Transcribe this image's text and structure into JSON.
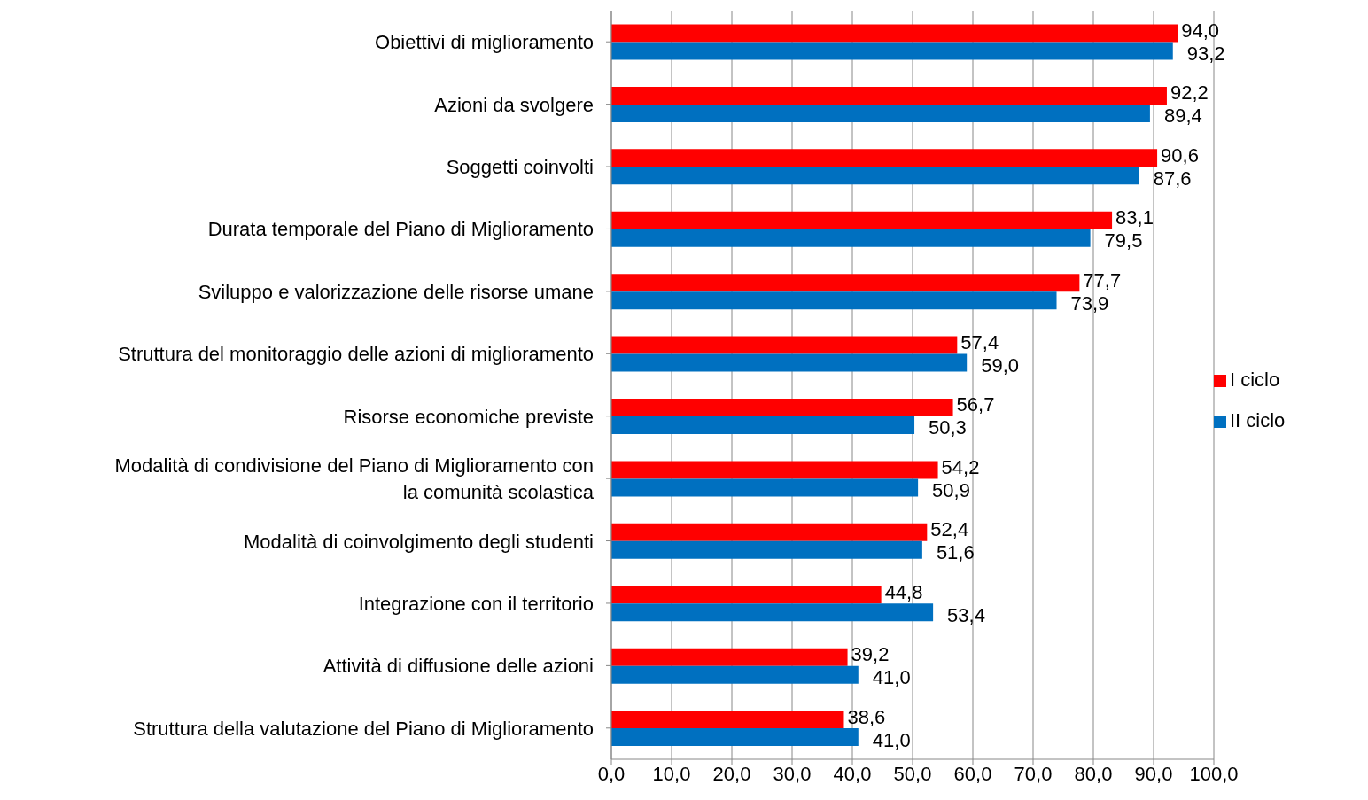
{
  "chart_data": {
    "type": "bar",
    "orientation": "horizontal",
    "categories": [
      "Obiettivi di miglioramento",
      "Azioni da svolgere",
      "Soggetti coinvolti",
      "Durata temporale del Piano di Miglioramento",
      "Sviluppo e valorizzazione delle risorse umane",
      "Struttura del monitoraggio delle azioni di miglioramento",
      "Risorse economiche previste",
      "Modalità di condivisione del Piano di Miglioramento con la comunità scolastica",
      "Modalità di coinvolgimento degli studenti",
      "Integrazione con il territorio",
      "Attività di diffusione delle azioni",
      "Struttura della valutazione del Piano di Miglioramento"
    ],
    "series": [
      {
        "name": "I ciclo",
        "color": "#ff0000",
        "values": [
          94.0,
          92.2,
          90.6,
          83.1,
          77.7,
          57.4,
          56.7,
          54.2,
          52.4,
          44.8,
          39.2,
          38.6
        ],
        "value_labels": [
          "94,0",
          "92,2",
          "90,6",
          "83,1",
          "77,7",
          "57,4",
          "56,7",
          "54,2",
          "52,4",
          "44,8",
          "39,2",
          "38,6"
        ]
      },
      {
        "name": "II ciclo",
        "color": "#0070c0",
        "values": [
          93.2,
          89.4,
          87.6,
          79.5,
          73.9,
          59.0,
          50.3,
          50.9,
          51.6,
          53.4,
          41.0,
          41.0
        ],
        "value_labels": [
          "93,2",
          "89,4",
          "87,6",
          "79,5",
          "73,9",
          "59,0",
          "50,3",
          "50,9",
          "51,6",
          "53,4",
          "41,0",
          "41,0"
        ]
      }
    ],
    "xlim": [
      0,
      100
    ],
    "xticks": [
      {
        "value": 0,
        "label": "0,0"
      },
      {
        "value": 10,
        "label": "10,0"
      },
      {
        "value": 20,
        "label": "20,0"
      },
      {
        "value": 30,
        "label": "30,0"
      },
      {
        "value": 40,
        "label": "40,0"
      },
      {
        "value": 50,
        "label": "50,0"
      },
      {
        "value": 60,
        "label": "60,0"
      },
      {
        "value": 70,
        "label": "70,0"
      },
      {
        "value": 80,
        "label": "80,0"
      },
      {
        "value": 90,
        "label": "90,0"
      },
      {
        "value": 100,
        "label": "100,0"
      }
    ],
    "grid": "x",
    "legend": "right"
  }
}
